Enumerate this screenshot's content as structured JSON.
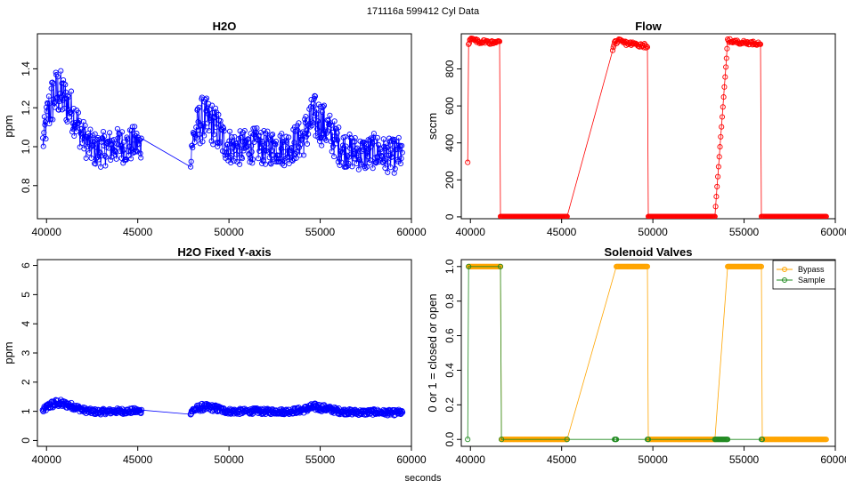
{
  "suptitle": "171116a    599412   Cyl Data",
  "shared_xlabel": "seconds",
  "colors": {
    "h2o": "#0000ff",
    "flow": "#ff0000",
    "bypass": "#ffa500",
    "sample": "#228b22"
  },
  "chart_data": [
    {
      "id": "h2o",
      "type": "scatter",
      "title": "H2O",
      "xlabel": "",
      "ylabel": "ppm",
      "xlim": [
        39500,
        60000
      ],
      "ylim": [
        0.63,
        1.58
      ],
      "xticks": [
        40000,
        45000,
        50000,
        55000,
        60000
      ],
      "yticks": [
        0.8,
        1.0,
        1.2,
        1.4
      ],
      "ytick_labels": [
        "0.8",
        "1.0",
        "1.2",
        "1.4"
      ],
      "grid": false,
      "series": [
        {
          "name": "",
          "style": "line+points",
          "x": [
            39800,
            40100,
            40400,
            40700,
            41000,
            41300,
            41600,
            42000,
            42400,
            42800,
            43200,
            43600,
            44000,
            44400,
            44800,
            45200,
            47900,
            48200,
            48500,
            48800,
            49100,
            49400,
            49700,
            50100,
            50500,
            51000,
            51500,
            52000,
            52500,
            53000,
            53300,
            54100,
            54400,
            54700,
            55000,
            55300,
            55700,
            56100,
            56500,
            57000,
            57500,
            58000,
            58500,
            59000,
            59500
          ],
          "y": [
            1.02,
            1.18,
            1.26,
            1.28,
            1.24,
            1.2,
            1.14,
            1.05,
            1.0,
            0.98,
            0.99,
            1.0,
            1.01,
            1.0,
            1.02,
            1.0,
            0.99,
            1.08,
            1.14,
            1.13,
            1.12,
            1.08,
            1.03,
            1.0,
            0.99,
            1.0,
            1.01,
            0.99,
            1.0,
            0.99,
            1.0,
            1.05,
            1.12,
            1.15,
            1.13,
            1.1,
            1.05,
            1.0,
            0.98,
            0.97,
            0.96,
            0.98,
            0.96,
            0.95,
            0.97
          ],
          "spread": [
            0.08,
            0.12,
            0.14,
            0.13,
            0.12,
            0.11,
            0.1,
            0.09,
            0.09,
            0.09,
            0.09,
            0.09,
            0.09,
            0.09,
            0.09,
            0.08,
            0.1,
            0.11,
            0.12,
            0.12,
            0.11,
            0.11,
            0.1,
            0.09,
            0.09,
            0.09,
            0.09,
            0.09,
            0.09,
            0.09,
            0.09,
            0.1,
            0.12,
            0.12,
            0.12,
            0.11,
            0.1,
            0.1,
            0.09,
            0.09,
            0.09,
            0.09,
            0.09,
            0.09,
            0.09
          ]
        }
      ]
    },
    {
      "id": "flow",
      "type": "scatter",
      "title": "Flow",
      "xlabel": "",
      "ylabel": "sccm",
      "xlim": [
        39500,
        60000
      ],
      "ylim": [
        -10,
        990
      ],
      "xticks": [
        40000,
        45000,
        50000,
        55000,
        60000
      ],
      "yticks": [
        0,
        200,
        400,
        600,
        800
      ],
      "ytick_labels": [
        "0",
        "200",
        "400",
        "600",
        "800"
      ],
      "grid": false,
      "series": [
        {
          "name": "",
          "style": "line+points",
          "x": [
            39850,
            39900,
            40000,
            40200,
            40500,
            40800,
            41100,
            41400,
            41600,
            41650,
            42500,
            43500,
            44500,
            45300,
            47800,
            47900,
            48100,
            48500,
            48900,
            49300,
            49700,
            49750,
            50500,
            51500,
            52500,
            53400,
            54000,
            54100,
            54300,
            54700,
            55100,
            55500,
            55900,
            55950,
            57000,
            58000,
            59000,
            59500
          ],
          "y": [
            295,
            940,
            960,
            955,
            945,
            950,
            942,
            948,
            945,
            2,
            2,
            2,
            2,
            2,
            900,
            945,
            950,
            940,
            935,
            930,
            925,
            2,
            2,
            2,
            2,
            2,
            810,
            955,
            950,
            945,
            942,
            940,
            938,
            2,
            2,
            2,
            2,
            2
          ],
          "spread": [
            0,
            10,
            12,
            10,
            10,
            10,
            10,
            10,
            10,
            0,
            0,
            0,
            0,
            0,
            0,
            10,
            12,
            12,
            12,
            12,
            12,
            0,
            0,
            0,
            0,
            0,
            0,
            10,
            10,
            10,
            10,
            10,
            10,
            0,
            0,
            0,
            0,
            0
          ]
        }
      ]
    },
    {
      "id": "h2o-fixed",
      "type": "scatter",
      "title": "H2O Fixed Y-axis",
      "xlabel": "",
      "ylabel": "ppm",
      "xlim": [
        39500,
        60000
      ],
      "ylim": [
        -0.2,
        6.2
      ],
      "xticks": [
        40000,
        45000,
        50000,
        55000,
        60000
      ],
      "yticks": [
        0,
        1,
        2,
        3,
        4,
        5,
        6
      ],
      "ytick_labels": [
        "0",
        "1",
        "2",
        "3",
        "4",
        "5",
        "6"
      ],
      "grid": false,
      "series_ref": "h2o"
    },
    {
      "id": "valves",
      "type": "scatter",
      "title": "Solenoid Valves",
      "xlabel": "",
      "ylabel": "0 or 1 = closed or open",
      "xlim": [
        39500,
        60000
      ],
      "ylim": [
        -0.04,
        1.04
      ],
      "xticks": [
        40000,
        45000,
        50000,
        55000,
        60000
      ],
      "yticks": [
        0.0,
        0.2,
        0.4,
        0.6,
        0.8,
        1.0
      ],
      "ytick_labels": [
        "0.0",
        "0.2",
        "0.4",
        "0.6",
        "0.8",
        "1.0"
      ],
      "grid": false,
      "legend": {
        "position": "top-right"
      },
      "series": [
        {
          "name": "Bypass",
          "style": "line+points",
          "x": [
            39900,
            40200,
            40600,
            41000,
            41400,
            41650,
            41700,
            42500,
            43500,
            44500,
            45300,
            48000,
            48100,
            48500,
            49000,
            49700,
            49750,
            50500,
            51500,
            52500,
            53400,
            54100,
            54200,
            54600,
            55000,
            55500,
            55950,
            56000,
            57000,
            58000,
            59000,
            59500
          ],
          "y": [
            1,
            1,
            1,
            1,
            1,
            1,
            0,
            0,
            0,
            0,
            0,
            1,
            1,
            1,
            1,
            1,
            0,
            0,
            0,
            0,
            0,
            1,
            1,
            1,
            1,
            1,
            1,
            0,
            0,
            0,
            0,
            0
          ]
        },
        {
          "name": "Sample",
          "style": "line+points",
          "x": [
            39850,
            39900,
            41650,
            41700,
            45300,
            47900,
            48000,
            49700,
            49750,
            53400,
            54000,
            54100,
            55950,
            56000
          ],
          "y": [
            0,
            1,
            1,
            0,
            0,
            0,
            0,
            0,
            0,
            0,
            0,
            0,
            0,
            0
          ]
        }
      ]
    }
  ]
}
